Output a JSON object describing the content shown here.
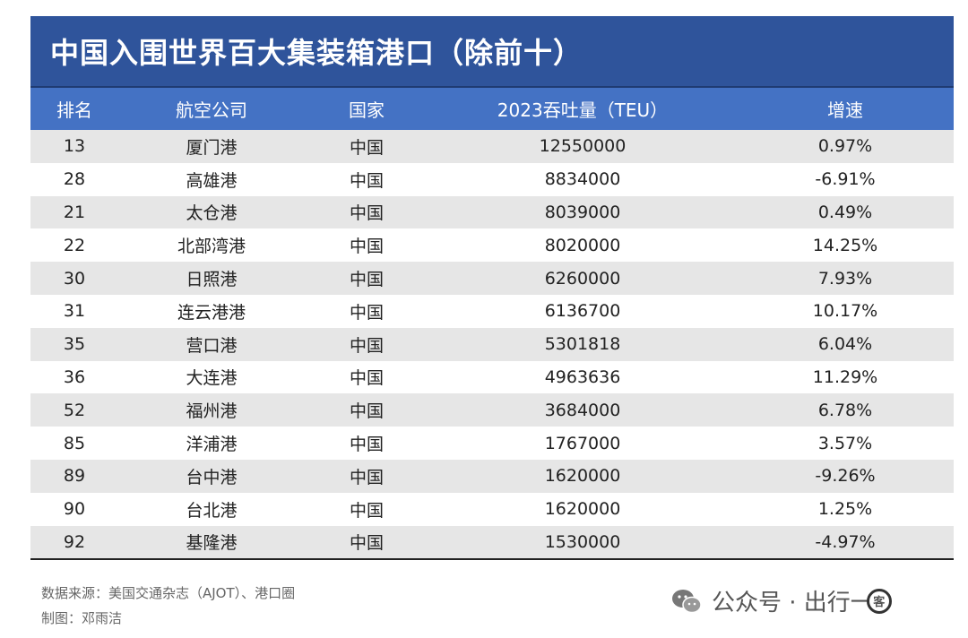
{
  "title": "中国入围世界百大集装箱港口（除前十）",
  "columns": [
    "排名",
    "航空公司",
    "国家",
    "2023吞吐量（TEU）",
    "增速"
  ],
  "chart_data": {
    "type": "table",
    "title": "中国入围世界百大集装箱港口（除前十）",
    "columns": [
      "排名",
      "航空公司",
      "国家",
      "2023吞吐量（TEU）",
      "增速"
    ],
    "rows": [
      [
        "13",
        "厦门港",
        "中国",
        "12550000",
        "0.97%"
      ],
      [
        "28",
        "高雄港",
        "中国",
        "8834000",
        "-6.91%"
      ],
      [
        "21",
        "太仓港",
        "中国",
        "8039000",
        "0.49%"
      ],
      [
        "22",
        "北部湾港",
        "中国",
        "8020000",
        "14.25%"
      ],
      [
        "30",
        "日照港",
        "中国",
        "6260000",
        "7.93%"
      ],
      [
        "31",
        "连云港港",
        "中国",
        "6136700",
        "10.17%"
      ],
      [
        "35",
        "营口港",
        "中国",
        "5301818",
        "6.04%"
      ],
      [
        "36",
        "大连港",
        "中国",
        "4963636",
        "11.29%"
      ],
      [
        "52",
        "福州港",
        "中国",
        "3684000",
        "6.78%"
      ],
      [
        "85",
        "洋浦港",
        "中国",
        "1767000",
        "3.57%"
      ],
      [
        "89",
        "台中港",
        "中国",
        "1620000",
        "-9.26%"
      ],
      [
        "90",
        "台北港",
        "中国",
        "1620000",
        "1.25%"
      ],
      [
        "92",
        "基隆港",
        "中国",
        "1530000",
        "-4.97%"
      ]
    ]
  },
  "footer": {
    "source": "数据来源：美国交通杂志（AJOT）、港口圈",
    "author": "制图：邓雨洁"
  },
  "watermark": {
    "text": "公众号 · 出行一",
    "badge": "客",
    "icon": "wechat-icon"
  },
  "colors": {
    "title_bg": "#2f549b",
    "header_bg": "#4472c4",
    "row_alt": "#e6e6e6"
  }
}
